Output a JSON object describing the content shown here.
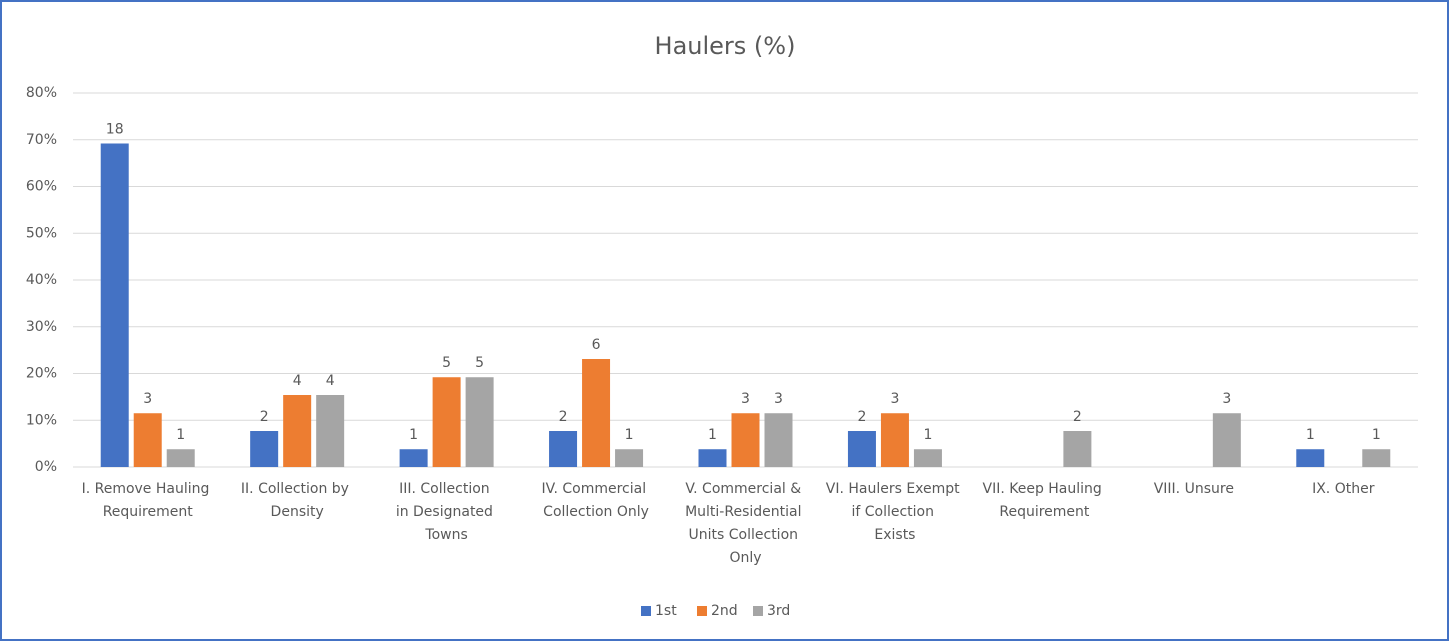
{
  "chart_data": {
    "type": "bar",
    "title": "Haulers (%)",
    "categories": [
      "I. Remove Hauling Requirement",
      "II.  Collection by Density",
      "III.  Collection  in Designated Towns",
      "IV. Commercial Collection Only",
      "V. Commercial & Multi-Residential Units Collection Only",
      "VI. Haulers Exempt if Collection Exists",
      "VII. Keep Hauling Requirement",
      "VIII. Unsure",
      "IX. Other"
    ],
    "series": [
      {
        "name": "1st",
        "color": "#4472c4",
        "values": [
          69.2,
          7.7,
          3.8,
          7.7,
          3.8,
          7.7,
          null,
          null,
          3.8
        ],
        "value_labels": [
          "18",
          "2",
          "1",
          "2",
          "1",
          "2",
          null,
          null,
          "1"
        ]
      },
      {
        "name": "2nd",
        "color": "#ed7d31",
        "values": [
          11.5,
          15.4,
          19.2,
          23.1,
          11.5,
          11.5,
          null,
          null,
          null
        ],
        "value_labels": [
          "3",
          "4",
          "5",
          "6",
          "3",
          "3",
          null,
          null,
          null
        ]
      },
      {
        "name": "3rd",
        "color": "#a5a5a5",
        "values": [
          3.8,
          15.4,
          19.2,
          3.8,
          11.5,
          3.8,
          7.7,
          11.5,
          3.8
        ],
        "value_labels": [
          "1",
          "4",
          "5",
          "1",
          "3",
          "1",
          "2",
          "3",
          "1"
        ]
      }
    ],
    "ylim": [
      0,
      80
    ],
    "yticks": [
      {
        "value": 0,
        "label": "0%"
      },
      {
        "value": 10,
        "label": "10%"
      },
      {
        "value": 20,
        "label": "20%"
      },
      {
        "value": 30,
        "label": "30%"
      },
      {
        "value": 40,
        "label": "40%"
      },
      {
        "value": 50,
        "label": "50%"
      },
      {
        "value": 60,
        "label": "60%"
      },
      {
        "value": 70,
        "label": "70%"
      },
      {
        "value": 80,
        "label": "80%"
      }
    ],
    "grid": true,
    "legend": "bottom"
  }
}
